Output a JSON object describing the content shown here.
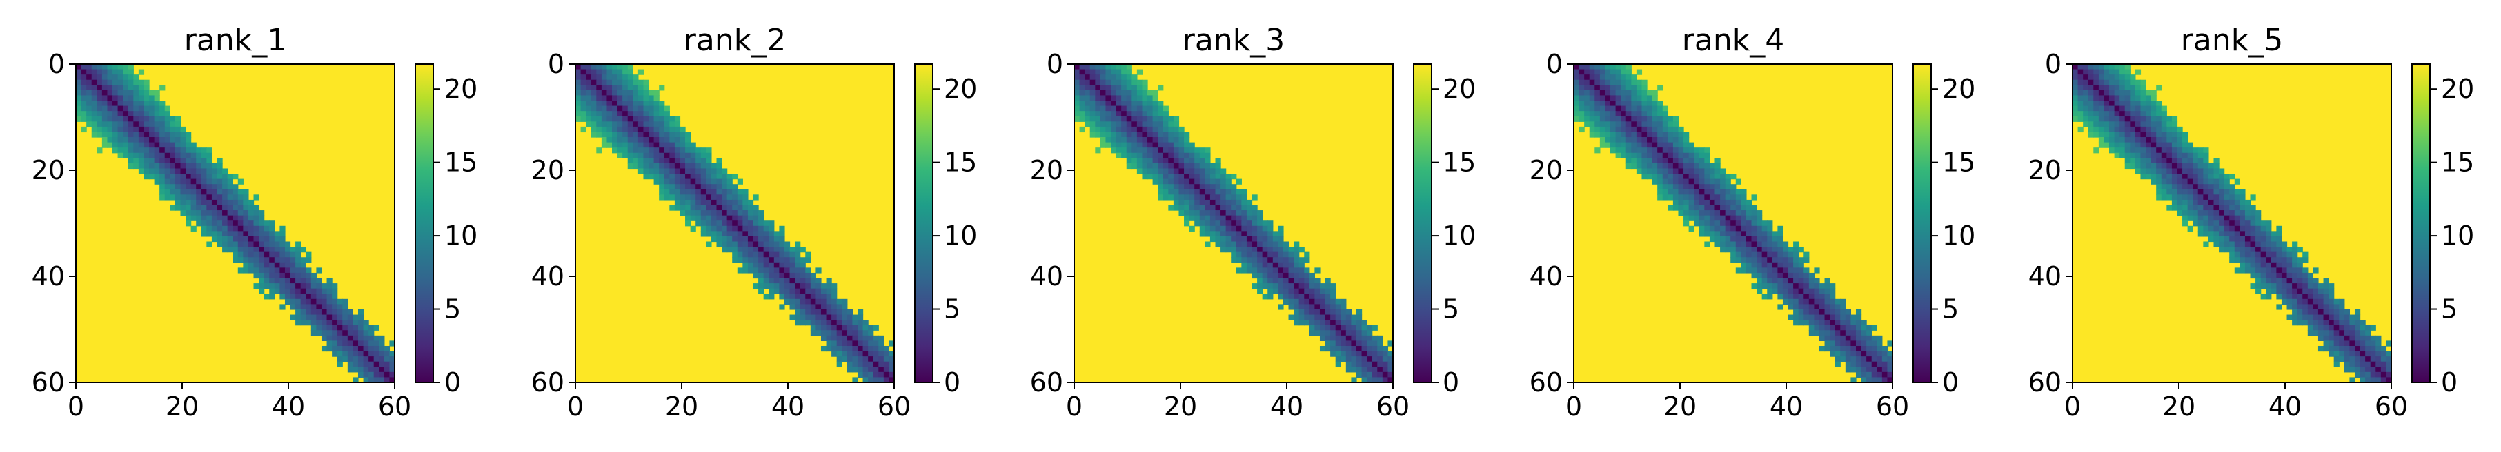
{
  "chart_data": [
    {
      "type": "heatmap",
      "title": "rank_1",
      "n": 61,
      "xlim": [
        0,
        60
      ],
      "ylim": [
        60,
        0
      ],
      "xticks": [
        "0",
        "20",
        "40",
        "60"
      ],
      "yticks": [
        "0",
        "20",
        "40",
        "60"
      ],
      "colorbar": {
        "ticks": [
          "0",
          "5",
          "10",
          "15",
          "20"
        ],
        "min": 0,
        "max": 21.7
      },
      "band_profile": [
        [
          0,
          9
        ],
        [
          10,
          10
        ],
        [
          20,
          7
        ],
        [
          30,
          7
        ],
        [
          40,
          6
        ],
        [
          50,
          5
        ],
        [
          60,
          5
        ]
      ]
    },
    {
      "type": "heatmap",
      "title": "rank_2",
      "n": 61,
      "xlim": [
        0,
        60
      ],
      "ylim": [
        60,
        0
      ],
      "xticks": [
        "0",
        "20",
        "40",
        "60"
      ],
      "yticks": [
        "0",
        "20",
        "40",
        "60"
      ],
      "colorbar": {
        "ticks": [
          "0",
          "5",
          "10",
          "15",
          "20"
        ],
        "min": 0,
        "max": 21.7
      },
      "band_profile": [
        [
          0,
          9
        ],
        [
          10,
          10
        ],
        [
          20,
          7
        ],
        [
          30,
          7
        ],
        [
          40,
          6
        ],
        [
          50,
          5
        ],
        [
          60,
          5
        ]
      ]
    },
    {
      "type": "heatmap",
      "title": "rank_3",
      "n": 61,
      "xlim": [
        0,
        60
      ],
      "ylim": [
        60,
        0
      ],
      "xticks": [
        "0",
        "20",
        "40",
        "60"
      ],
      "yticks": [
        "0",
        "20",
        "40",
        "60"
      ],
      "colorbar": {
        "ticks": [
          "0",
          "5",
          "10",
          "15",
          "20"
        ],
        "min": 0,
        "max": 21.7
      },
      "band_profile": [
        [
          0,
          9
        ],
        [
          10,
          10
        ],
        [
          20,
          7
        ],
        [
          30,
          7
        ],
        [
          40,
          6
        ],
        [
          50,
          5
        ],
        [
          60,
          5
        ]
      ]
    },
    {
      "type": "heatmap",
      "title": "rank_4",
      "n": 61,
      "xlim": [
        0,
        60
      ],
      "ylim": [
        60,
        0
      ],
      "xticks": [
        "0",
        "20",
        "40",
        "60"
      ],
      "yticks": [
        "0",
        "20",
        "40",
        "60"
      ],
      "colorbar": {
        "ticks": [
          "0",
          "5",
          "10",
          "15",
          "20"
        ],
        "min": 0,
        "max": 21.7
      },
      "band_profile": [
        [
          0,
          9
        ],
        [
          10,
          10
        ],
        [
          20,
          7
        ],
        [
          30,
          7
        ],
        [
          40,
          6
        ],
        [
          50,
          5
        ],
        [
          60,
          5
        ]
      ]
    },
    {
      "type": "heatmap",
      "title": "rank_5",
      "n": 61,
      "xlim": [
        0,
        60
      ],
      "ylim": [
        60,
        0
      ],
      "xticks": [
        "0",
        "20",
        "40",
        "60"
      ],
      "yticks": [
        "0",
        "20",
        "40",
        "60"
      ],
      "colorbar": {
        "ticks": [
          "0",
          "5",
          "10",
          "15",
          "20"
        ],
        "min": 0,
        "max": 21.7
      },
      "band_profile": [
        [
          0,
          9
        ],
        [
          10,
          10
        ],
        [
          20,
          7
        ],
        [
          30,
          7
        ],
        [
          40,
          6
        ],
        [
          50,
          5
        ],
        [
          60,
          5
        ]
      ]
    }
  ],
  "colors": {
    "viridis": [
      "#440154",
      "#482878",
      "#3e4989",
      "#31688e",
      "#26828e",
      "#1f9e89",
      "#35b779",
      "#6ece58",
      "#b5de2b",
      "#fde725"
    ]
  }
}
